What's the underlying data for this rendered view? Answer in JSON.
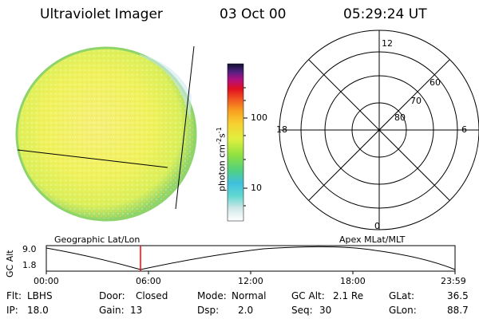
{
  "header": {
    "instrument": "Ultraviolet Imager",
    "date": "03 Oct 00",
    "time": "05:29:24 UT"
  },
  "colorbar": {
    "unit_label": "photon cm",
    "unit_exp1": "-2",
    "unit_s": "s",
    "unit_exp2": "-1",
    "tick_100": "100",
    "tick_10": "10"
  },
  "polar": {
    "mlt_12": "12",
    "mlt_18": "18",
    "mlt_6": "6",
    "mlt_0": "0",
    "lat_60": "60",
    "lat_70": "70",
    "lat_80": "80"
  },
  "altitude_plot": {
    "axis_label": "GC Alt",
    "y_top": "9.0",
    "y_bottom": "1.8",
    "left_title": "Geographic Lat/Lon",
    "right_title": "Apex MLat/MLT",
    "x_ticks": [
      "00:00",
      "06:00",
      "12:00",
      "18:00",
      "23:59"
    ],
    "marker_color": "#ff0000"
  },
  "info": {
    "flt_label": "Flt:",
    "flt_value": "LBHS",
    "ip_label": "IP:",
    "ip_value": "18.0",
    "door_label": "Door:",
    "door_value": "Closed",
    "gain_label": "Gain:",
    "gain_value": "13",
    "mode_label": "Mode:",
    "mode_value": "Normal",
    "dsp_label": "Dsp:",
    "dsp_value": "2.0",
    "gcalt_label": "GC Alt:",
    "gcalt_value": "2.1 Re",
    "seq_label": "Seq:",
    "seq_value": "30",
    "glat_label": "GLat:",
    "glat_value": "36.5",
    "glon_label": "GLon:",
    "glon_value": "88.7"
  },
  "colors": {
    "disk_fill": "#f1f56a",
    "disk_edge": "#7ec86a",
    "limb_line": "#000000"
  }
}
